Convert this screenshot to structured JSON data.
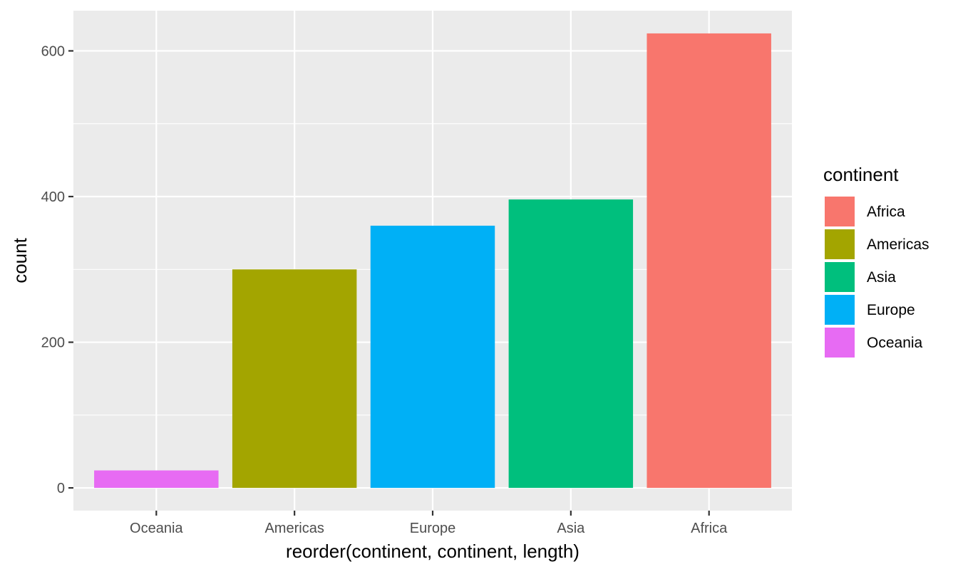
{
  "chart_data": {
    "type": "bar",
    "title": "",
    "xlabel": "reorder(continent, continent, length)",
    "ylabel": "count",
    "categories": [
      "Oceania",
      "Americas",
      "Europe",
      "Asia",
      "Africa"
    ],
    "values": [
      24,
      300,
      360,
      396,
      624
    ],
    "bar_colors": [
      "#E76BF3",
      "#A3A500",
      "#00B0F6",
      "#00BF7D",
      "#F8766D"
    ],
    "ylim": [
      -31.2,
      655.2
    ],
    "yticks": [
      0,
      200,
      400,
      600
    ],
    "grid": true,
    "legend": {
      "title": "continent",
      "position": "right",
      "items": [
        {
          "label": "Africa",
          "color": "#F8766D"
        },
        {
          "label": "Americas",
          "color": "#A3A500"
        },
        {
          "label": "Asia",
          "color": "#00BF7D"
        },
        {
          "label": "Europe",
          "color": "#00B0F6"
        },
        {
          "label": "Oceania",
          "color": "#E76BF3"
        }
      ]
    },
    "panel_background": "#EBEBEB",
    "grid_color": "#FFFFFF"
  }
}
